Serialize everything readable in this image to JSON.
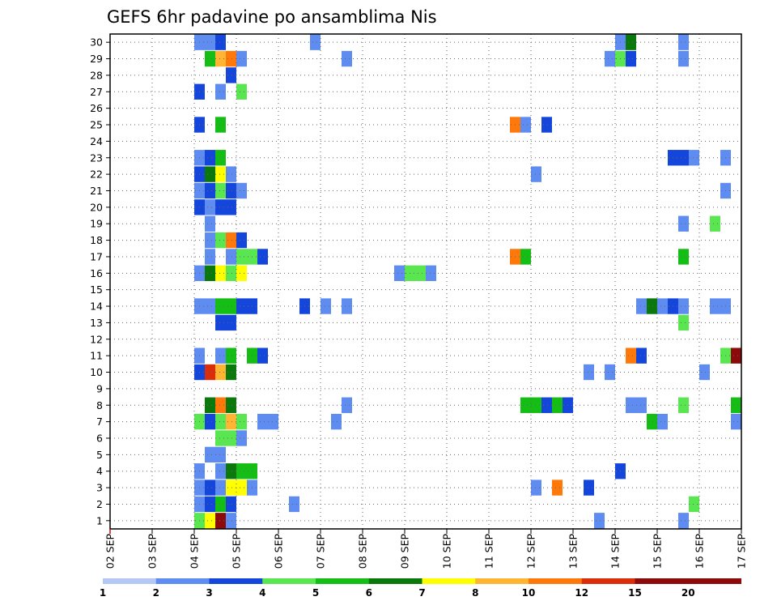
{
  "chart_data": {
    "type": "heatmap",
    "title": "GEFS 6hr padavine po ansamblima Nis",
    "y_tick_labels": [
      "1",
      "2",
      "3",
      "4",
      "5",
      "6",
      "7",
      "8",
      "9",
      "10",
      "11",
      "12",
      "13",
      "14",
      "15",
      "16",
      "17",
      "18",
      "19",
      "20",
      "21",
      "22",
      "23",
      "24",
      "25",
      "26",
      "27",
      "28",
      "29",
      "30"
    ],
    "x_tick_labels": [
      "02 SEP",
      "03 SEP",
      "04 SEP",
      "05 SEP",
      "06 SEP",
      "07 SEP",
      "08 SEP",
      "09 SEP",
      "10 SEP",
      "11 SEP",
      "12 SEP",
      "13 SEP",
      "14 SEP",
      "15 SEP",
      "16 SEP",
      "17 SEP"
    ],
    "colorbar": {
      "labels": [
        "1",
        "2",
        "3",
        "4",
        "5",
        "6",
        "7",
        "8",
        "10",
        "12",
        "15",
        "20"
      ],
      "colors": [
        "#b4c8f5",
        "#5f8cf0",
        "#1446dc",
        "#5ae650",
        "#14be14",
        "#0a780a",
        "#ffff00",
        "#ffb432",
        "#ff780a",
        "#dc2d0a",
        "#8c0a0a"
      ]
    },
    "grid": "dotted",
    "cells": [
      {
        "m": 30,
        "s": [
          [
            4.0,
            0.25,
            1
          ],
          [
            4.25,
            0.25,
            1
          ],
          [
            4.5,
            0.25,
            2
          ],
          [
            6.75,
            0.25,
            1
          ],
          [
            14.0,
            0.25,
            1
          ],
          [
            14.25,
            0.25,
            5
          ],
          [
            15.5,
            0.25,
            1
          ]
        ]
      },
      {
        "m": 29,
        "s": [
          [
            4.25,
            0.25,
            4
          ],
          [
            4.5,
            0.25,
            7
          ],
          [
            4.75,
            0.25,
            8
          ],
          [
            5.0,
            0.25,
            1
          ],
          [
            7.5,
            0.25,
            1
          ],
          [
            13.75,
            0.25,
            1
          ],
          [
            14.0,
            0.25,
            3
          ],
          [
            14.25,
            0.25,
            2
          ],
          [
            15.5,
            0.25,
            1
          ]
        ]
      },
      {
        "m": 28,
        "s": [
          [
            4.75,
            0.25,
            2
          ]
        ]
      },
      {
        "m": 27,
        "s": [
          [
            4.0,
            0.25,
            2
          ],
          [
            4.5,
            0.25,
            1
          ],
          [
            5.0,
            0.25,
            3
          ]
        ]
      },
      {
        "m": 25,
        "s": [
          [
            4.0,
            0.25,
            2
          ],
          [
            4.5,
            0.25,
            4
          ],
          [
            11.5,
            0.25,
            8
          ],
          [
            11.75,
            0.25,
            1
          ],
          [
            12.25,
            0.25,
            2
          ]
        ]
      },
      {
        "m": 23,
        "s": [
          [
            4.0,
            0.25,
            1
          ],
          [
            4.25,
            0.25,
            2
          ],
          [
            4.5,
            0.25,
            4
          ],
          [
            15.25,
            0.5,
            2
          ],
          [
            15.75,
            0.25,
            1
          ],
          [
            16.5,
            0.25,
            1
          ]
        ]
      },
      {
        "m": 22,
        "s": [
          [
            4.0,
            0.25,
            2
          ],
          [
            4.25,
            0.25,
            5
          ],
          [
            4.5,
            0.25,
            6
          ],
          [
            4.75,
            0.25,
            1
          ],
          [
            12.0,
            0.25,
            1
          ]
        ]
      },
      {
        "m": 21,
        "s": [
          [
            4.0,
            0.25,
            1
          ],
          [
            4.25,
            0.25,
            2
          ],
          [
            4.5,
            0.25,
            3
          ],
          [
            4.75,
            0.25,
            2
          ],
          [
            5.0,
            0.25,
            1
          ],
          [
            16.5,
            0.25,
            1
          ]
        ]
      },
      {
        "m": 20,
        "s": [
          [
            4.0,
            0.25,
            2
          ],
          [
            4.25,
            0.25,
            1
          ],
          [
            4.5,
            0.5,
            2
          ]
        ]
      },
      {
        "m": 19,
        "s": [
          [
            4.25,
            0.25,
            1
          ],
          [
            15.5,
            0.25,
            1
          ],
          [
            16.25,
            0.25,
            3
          ]
        ]
      },
      {
        "m": 18,
        "s": [
          [
            4.25,
            0.25,
            1
          ],
          [
            4.5,
            0.25,
            3
          ],
          [
            4.75,
            0.25,
            8
          ],
          [
            5.0,
            0.25,
            2
          ]
        ]
      },
      {
        "m": 17,
        "s": [
          [
            4.25,
            0.25,
            1
          ],
          [
            4.75,
            0.25,
            1
          ],
          [
            5.0,
            0.5,
            3
          ],
          [
            5.5,
            0.25,
            2
          ],
          [
            11.5,
            0.25,
            8
          ],
          [
            11.75,
            0.25,
            4
          ],
          [
            15.5,
            0.25,
            4
          ]
        ]
      },
      {
        "m": 16,
        "s": [
          [
            4.0,
            0.25,
            1
          ],
          [
            4.25,
            0.25,
            5
          ],
          [
            4.5,
            0.25,
            6
          ],
          [
            4.75,
            0.25,
            3
          ],
          [
            5.0,
            0.25,
            6
          ],
          [
            8.75,
            0.25,
            1
          ],
          [
            9.0,
            0.5,
            3
          ],
          [
            9.5,
            0.25,
            1
          ]
        ]
      },
      {
        "m": 14,
        "s": [
          [
            4.0,
            0.5,
            1
          ],
          [
            4.5,
            0.5,
            4
          ],
          [
            5.0,
            0.5,
            2
          ],
          [
            6.5,
            0.25,
            2
          ],
          [
            7.0,
            0.25,
            1
          ],
          [
            7.5,
            0.25,
            1
          ],
          [
            14.5,
            0.25,
            1
          ],
          [
            14.75,
            0.25,
            5
          ],
          [
            15.0,
            0.25,
            1
          ],
          [
            15.25,
            0.25,
            2
          ],
          [
            15.5,
            0.25,
            1
          ],
          [
            16.25,
            0.5,
            1
          ]
        ]
      },
      {
        "m": 13,
        "s": [
          [
            4.5,
            0.5,
            2
          ],
          [
            15.5,
            0.25,
            3
          ]
        ]
      },
      {
        "m": 11,
        "s": [
          [
            4.0,
            0.25,
            1
          ],
          [
            4.5,
            0.25,
            1
          ],
          [
            4.75,
            0.25,
            4
          ],
          [
            5.25,
            0.25,
            4
          ],
          [
            5.5,
            0.25,
            2
          ],
          [
            14.25,
            0.25,
            8
          ],
          [
            14.5,
            0.25,
            2
          ],
          [
            16.5,
            0.25,
            3
          ],
          [
            16.75,
            0.25,
            10
          ]
        ]
      },
      {
        "m": 10,
        "s": [
          [
            4.0,
            0.25,
            2
          ],
          [
            4.25,
            0.25,
            9
          ],
          [
            4.5,
            0.25,
            7
          ],
          [
            4.75,
            0.25,
            5
          ],
          [
            13.25,
            0.25,
            1
          ],
          [
            13.75,
            0.25,
            1
          ],
          [
            16.0,
            0.25,
            1
          ]
        ]
      },
      {
        "m": 8,
        "s": [
          [
            4.25,
            0.25,
            5
          ],
          [
            4.5,
            0.25,
            8
          ],
          [
            4.75,
            0.25,
            5
          ],
          [
            7.5,
            0.25,
            1
          ],
          [
            11.75,
            0.5,
            4
          ],
          [
            12.25,
            0.25,
            2
          ],
          [
            12.5,
            0.25,
            4
          ],
          [
            12.75,
            0.25,
            2
          ],
          [
            14.25,
            0.5,
            1
          ],
          [
            15.5,
            0.25,
            3
          ],
          [
            16.75,
            0.25,
            4
          ]
        ]
      },
      {
        "m": 7,
        "s": [
          [
            4.0,
            0.25,
            3
          ],
          [
            4.25,
            0.25,
            2
          ],
          [
            4.5,
            0.25,
            3
          ],
          [
            4.75,
            0.25,
            7
          ],
          [
            5.0,
            0.25,
            3
          ],
          [
            5.5,
            0.5,
            1
          ],
          [
            7.25,
            0.25,
            1
          ],
          [
            14.75,
            0.25,
            4
          ],
          [
            15.0,
            0.25,
            1
          ],
          [
            16.75,
            0.25,
            1
          ]
        ]
      },
      {
        "m": 6,
        "s": [
          [
            4.5,
            0.5,
            3
          ],
          [
            5.0,
            0.25,
            1
          ]
        ]
      },
      {
        "m": 5,
        "s": [
          [
            4.25,
            0.5,
            1
          ]
        ]
      },
      {
        "m": 4,
        "s": [
          [
            4.0,
            0.25,
            1
          ],
          [
            4.5,
            0.25,
            1
          ],
          [
            4.75,
            0.25,
            5
          ],
          [
            5.0,
            0.5,
            4
          ],
          [
            14.0,
            0.25,
            2
          ]
        ]
      },
      {
        "m": 3,
        "s": [
          [
            4.0,
            0.25,
            1
          ],
          [
            4.25,
            0.25,
            2
          ],
          [
            4.5,
            0.25,
            1
          ],
          [
            4.75,
            0.5,
            6
          ],
          [
            5.25,
            0.25,
            1
          ],
          [
            12.0,
            0.25,
            1
          ],
          [
            12.5,
            0.25,
            8
          ],
          [
            13.25,
            0.25,
            2
          ]
        ]
      },
      {
        "m": 2,
        "s": [
          [
            4.0,
            0.25,
            1
          ],
          [
            4.25,
            0.25,
            2
          ],
          [
            4.5,
            0.25,
            4
          ],
          [
            4.75,
            0.25,
            2
          ],
          [
            6.25,
            0.25,
            1
          ],
          [
            15.75,
            0.25,
            3
          ]
        ]
      },
      {
        "m": 1,
        "s": [
          [
            4.0,
            0.25,
            3
          ],
          [
            4.25,
            0.25,
            6
          ],
          [
            4.5,
            0.25,
            10
          ],
          [
            4.75,
            0.25,
            1
          ],
          [
            13.5,
            0.25,
            1
          ],
          [
            15.5,
            0.25,
            1
          ]
        ]
      }
    ]
  }
}
